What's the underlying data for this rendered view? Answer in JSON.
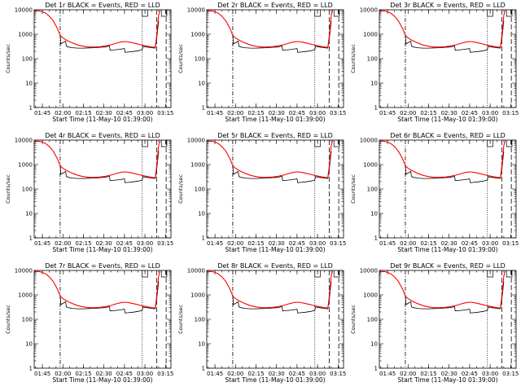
{
  "chart_data": {
    "type": "line",
    "layout": "3x3 grid",
    "start_time_label": "Start Time (11-May-10 01:39:00)",
    "ylabel": "Counts/sec",
    "y_scale": "log",
    "ylim": [
      1,
      10000
    ],
    "y_ticks": [
      "1",
      "10",
      "100",
      "1000",
      "10000"
    ],
    "x_unit": "minutes since 01:39:00",
    "xlim": [
      0,
      100
    ],
    "x_ticks": [
      {
        "value": 6,
        "label": "01:45"
      },
      {
        "value": 21,
        "label": "02:00"
      },
      {
        "value": 36,
        "label": "02:15"
      },
      {
        "value": 51,
        "label": "02:30"
      },
      {
        "value": 66,
        "label": "02:45"
      },
      {
        "value": 81,
        "label": "03:00"
      },
      {
        "value": 96,
        "label": "03:15"
      }
    ],
    "colors": {
      "events": "#000000",
      "lld": "#ff0000"
    },
    "vertical_markers": [
      {
        "x": 19,
        "style": "dashdot"
      },
      {
        "x": 79,
        "style": "dotted"
      },
      {
        "x": 89.5,
        "style": "dashed"
      },
      {
        "x": 96.5,
        "style": "dashed"
      }
    ],
    "saa_marker_intervals": [
      [
        79,
        83
      ],
      [
        93,
        97
      ]
    ],
    "lld_series": {
      "x": [
        0,
        4,
        8,
        11,
        14,
        17,
        19,
        21,
        24,
        28,
        32,
        36,
        40,
        44,
        48,
        52,
        56,
        60,
        64,
        67,
        70,
        74,
        78,
        82,
        86,
        88.5,
        89.5,
        91,
        92
      ],
      "values": [
        9000,
        9000,
        7500,
        5500,
        3500,
        1700,
        900,
        700,
        560,
        440,
        360,
        320,
        300,
        300,
        310,
        330,
        370,
        430,
        490,
        500,
        470,
        420,
        370,
        330,
        300,
        290,
        800,
        6000,
        9500
      ]
    },
    "events_series": {
      "x": [
        19,
        19.5,
        21,
        23,
        23.5,
        25,
        28,
        32,
        36,
        40,
        44,
        48,
        52,
        55,
        55.5,
        58,
        62,
        66,
        66.5,
        68,
        72,
        76,
        79,
        79.5,
        82,
        86,
        88.5,
        89.5,
        91
      ],
      "values": [
        1000,
        400,
        450,
        520,
        320,
        300,
        280,
        270,
        270,
        275,
        280,
        290,
        300,
        330,
        220,
        225,
        240,
        260,
        180,
        185,
        195,
        210,
        230,
        320,
        300,
        280,
        270,
        600,
        3500
      ]
    },
    "panels": [
      {
        "title": "Det 1r BLACK = Events, RED = LLD"
      },
      {
        "title": "Det 2r BLACK = Events, RED = LLD"
      },
      {
        "title": "Det 3r BLACK = Events, RED = LLD"
      },
      {
        "title": "Det 4r BLACK = Events, RED = LLD"
      },
      {
        "title": "Det 5r BLACK = Events, RED = LLD"
      },
      {
        "title": "Det 6r BLACK = Events, RED = LLD"
      },
      {
        "title": "Det 7r BLACK = Events, RED = LLD"
      },
      {
        "title": "Det 8r BLACK = Events, RED = LLD"
      },
      {
        "title": "Det 9r BLACK = Events, RED = LLD"
      }
    ]
  }
}
